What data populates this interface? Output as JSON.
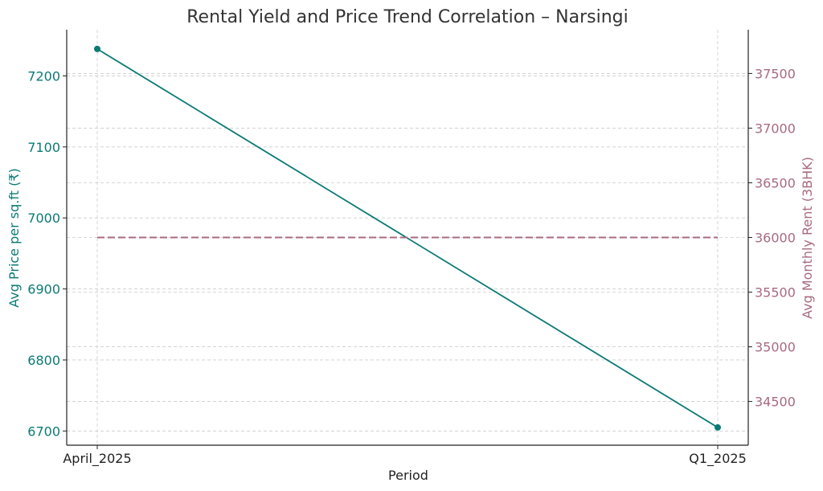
{
  "chart_data": {
    "type": "line",
    "title": "Rental Yield and Price Trend Correlation – Narsingi",
    "xlabel": "Period",
    "categories": [
      "April_2025",
      "Q1_2025"
    ],
    "left_axis": {
      "label": "Avg Price per sq.ft (₹)",
      "color": "#0b7a75",
      "ticks": [
        6700,
        6800,
        6900,
        7000,
        7100,
        7200
      ],
      "tick_labels": [
        "6700",
        "6800",
        "6900",
        "7000",
        "7100",
        "7200"
      ],
      "ylim": [
        6680,
        7265
      ]
    },
    "right_axis": {
      "label": "Avg Monthly Rent (3BHK)",
      "color": "#a86a80",
      "ticks": [
        34500,
        35000,
        35500,
        36000,
        36500,
        37000,
        37500
      ],
      "tick_labels": [
        "34500",
        "35000",
        "35500",
        "36000",
        "36500",
        "37000",
        "37500"
      ],
      "ylim": [
        34100,
        37900
      ]
    },
    "series": [
      {
        "name": "Avg Price per sq.ft",
        "axis": "left",
        "values": [
          7238,
          6705
        ],
        "color": "#0b7a75",
        "style": "solid",
        "markers": true
      },
      {
        "name": "Avg Monthly Rent (3BHK)",
        "axis": "right",
        "values": [
          36000,
          36000
        ],
        "color": "#a86a80",
        "style": "dashed",
        "markers": false
      }
    ],
    "grid": true
  }
}
